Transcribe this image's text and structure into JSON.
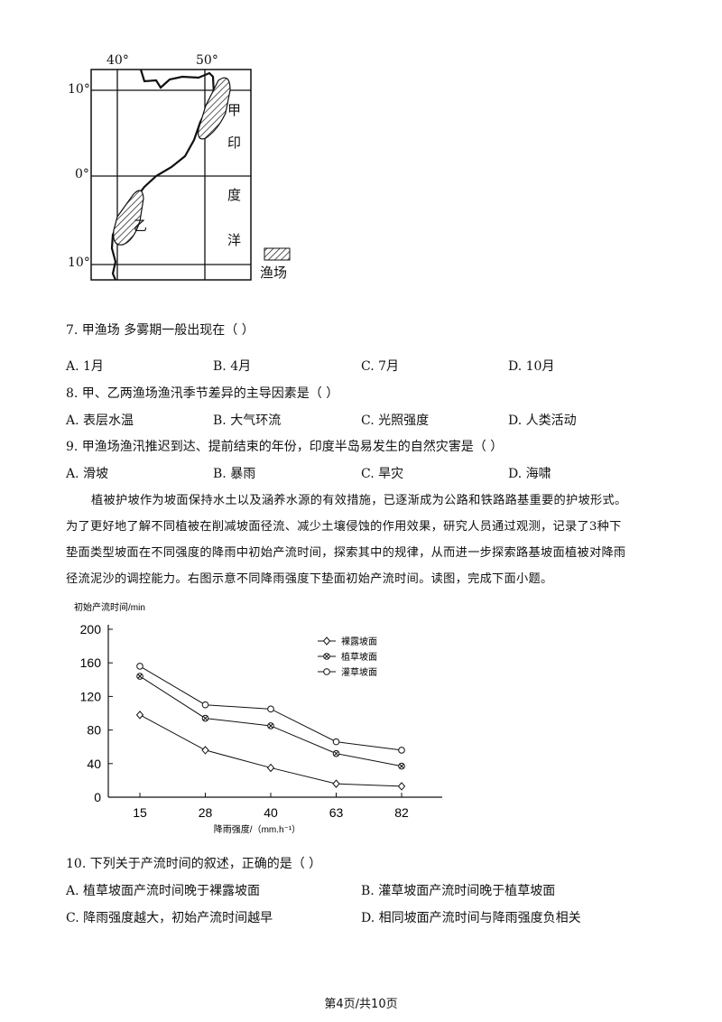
{
  "map": {
    "lon_labels": [
      "40°",
      "50°"
    ],
    "lat_labels": [
      "10°",
      "0°",
      "10°"
    ],
    "region_labels": {
      "jia": "甲",
      "yi": "乙",
      "ocean": [
        "印",
        "度",
        "洋"
      ]
    },
    "legend_label": "渔场"
  },
  "questions": [
    {
      "stem": "7. 甲渔场   多雾期一般出现在（     ）",
      "options": [
        "A.  1月",
        "B.  4月",
        "C.  7月",
        "D.  10月"
      ]
    },
    {
      "stem": "8. 甲、乙两渔场渔汛季节差异的主导因素是（     ）",
      "options": [
        "A.  表层水温",
        "B.  大气环流",
        "C.  光照强度",
        "D.  人类活动"
      ]
    },
    {
      "stem": "9. 甲渔场渔汛推迟到达、提前结束的年份，印度半岛易发生的自然灾害是（     ）",
      "options": [
        "A.  滑坡",
        "B.  暴雨",
        "C.  旱灾",
        "D.  海啸"
      ]
    }
  ],
  "passage": [
    "植被护坡作为坡面保持水土以及涵养水源的有效措施，已逐渐成为公路和铁路路基重要的护坡形式。",
    "为了更好地了解不同植被在削减坡面径流、减少土壤侵蚀的作用效果，研究人员通过观测，记录了3种下",
    "垫面类型坡面在不同强度的降雨中初始产流时间，探索其中的规律，从而进一步探索路基坡面植被对降雨",
    "径流泥沙的调控能力。右图示意不同降雨强度下垫面初始产流时间。读图，完成下面小题。"
  ],
  "chart_data": {
    "type": "line",
    "ylabel": "初始产流时间/min",
    "xlabel": "降雨强度/（mm.h⁻¹）",
    "categories": [
      "15",
      "28",
      "40",
      "63",
      "82"
    ],
    "yticks": [
      "200",
      "160",
      "120",
      "80",
      "40",
      "0"
    ],
    "ylim": [
      0,
      200
    ],
    "legend_position": "top-right",
    "series": [
      {
        "name": "裸露坡面",
        "marker": "diamond",
        "values": [
          98,
          56,
          35,
          16,
          13
        ]
      },
      {
        "name": "植草坡面",
        "marker": "x-circle",
        "values": [
          144,
          94,
          85,
          52,
          37
        ]
      },
      {
        "name": "灌草坡面",
        "marker": "circle",
        "values": [
          156,
          110,
          105,
          66,
          56
        ]
      }
    ]
  },
  "question10": {
    "stem": "10. 下列关于产流时间的叙述，正确的是（     ）",
    "options": [
      "A.  植草坡面产流时间晚于裸露坡面",
      "B.  灌草坡面产流时间晚于植草坡面",
      "C.  降雨强度越大，初始产流时间越早",
      "D.  相同坡面产流时间与降雨强度负相关"
    ]
  },
  "footer": "第4页/共10页"
}
